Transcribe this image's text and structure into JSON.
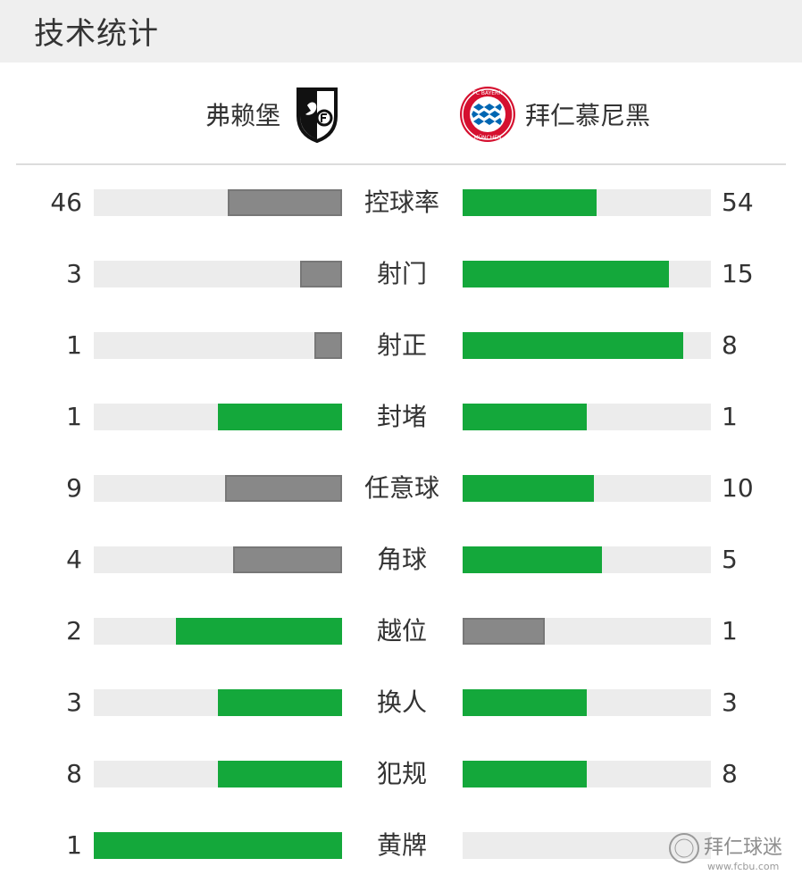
{
  "header": {
    "title": "技术统计"
  },
  "teams": {
    "home": {
      "name": "弗赖堡",
      "logo_icon": "freiburg-crest-icon"
    },
    "away": {
      "name": "拜仁慕尼黑",
      "logo_icon": "bayern-munich-crest-icon",
      "logo_text_top": "FC BAYERN",
      "logo_text_bottom": "MÜNCHEN"
    }
  },
  "colors": {
    "win": "#14a83b",
    "lose": "#888888",
    "track": "#ececec"
  },
  "stats": [
    {
      "label": "控球率",
      "home": "46",
      "away": "54",
      "home_fill": 0.46,
      "away_fill": 0.54,
      "home_color": "lose",
      "away_color": "win"
    },
    {
      "label": "射门",
      "home": "3",
      "away": "15",
      "home_fill": 0.17,
      "away_fill": 0.83,
      "home_color": "lose",
      "away_color": "win"
    },
    {
      "label": "射正",
      "home": "1",
      "away": "8",
      "home_fill": 0.11,
      "away_fill": 0.89,
      "home_color": "lose",
      "away_color": "win"
    },
    {
      "label": "封堵",
      "home": "1",
      "away": "1",
      "home_fill": 0.5,
      "away_fill": 0.5,
      "home_color": "win",
      "away_color": "win"
    },
    {
      "label": "任意球",
      "home": "9",
      "away": "10",
      "home_fill": 0.47,
      "away_fill": 0.53,
      "home_color": "lose",
      "away_color": "win"
    },
    {
      "label": "角球",
      "home": "4",
      "away": "5",
      "home_fill": 0.44,
      "away_fill": 0.56,
      "home_color": "lose",
      "away_color": "win"
    },
    {
      "label": "越位",
      "home": "2",
      "away": "1",
      "home_fill": 0.67,
      "away_fill": 0.33,
      "home_color": "win",
      "away_color": "lose"
    },
    {
      "label": "换人",
      "home": "3",
      "away": "3",
      "home_fill": 0.5,
      "away_fill": 0.5,
      "home_color": "win",
      "away_color": "win"
    },
    {
      "label": "犯规",
      "home": "8",
      "away": "8",
      "home_fill": 0.5,
      "away_fill": 0.5,
      "home_color": "win",
      "away_color": "win"
    },
    {
      "label": "黄牌",
      "home": "1",
      "away": "",
      "home_fill": 1.0,
      "away_fill": 0.0,
      "home_color": "win",
      "away_color": "win"
    }
  ],
  "watermark": {
    "text": "拜仁球迷",
    "url": "www.fcbu.com",
    "icon": "fcbu-watermark-icon"
  }
}
